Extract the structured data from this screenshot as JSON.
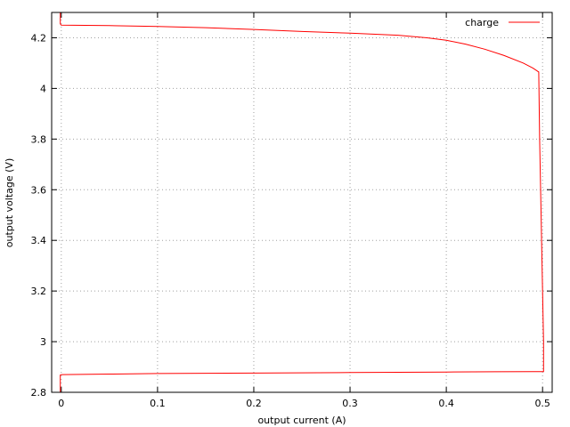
{
  "chart_data": {
    "type": "line",
    "title": "",
    "xlabel": "output current (A)",
    "ylabel": "output voltage (V)",
    "xlim": [
      -0.01,
      0.51
    ],
    "ylim": [
      2.8,
      4.3
    ],
    "x_ticks": [
      0,
      0.1,
      0.2,
      0.3,
      0.4,
      0.5
    ],
    "x_tick_labels": [
      "0",
      "0.1",
      "0.2",
      "0.3",
      "0.4",
      "0.5"
    ],
    "y_ticks": [
      2.8,
      3.0,
      3.2,
      3.4,
      3.6,
      3.8,
      4.0,
      4.2
    ],
    "y_tick_labels": [
      "2.8",
      "3",
      "3.2",
      "3.4",
      "3.6",
      "3.8",
      "4",
      "4.2"
    ],
    "grid": true,
    "legend_position": "top-right",
    "series": [
      {
        "name": "charge",
        "color": "#ff0000",
        "x": [
          -0.001,
          -0.001,
          0.0,
          0.05,
          0.1,
          0.15,
          0.2,
          0.25,
          0.3,
          0.35,
          0.38,
          0.4,
          0.42,
          0.44,
          0.46,
          0.48,
          0.49,
          0.496,
          0.497,
          0.498,
          0.499,
          0.5,
          0.501,
          0.501,
          0.49,
          0.45,
          0.4,
          0.3,
          0.2,
          0.1,
          0.05,
          0.0,
          -0.001,
          -0.001
        ],
        "y": [
          4.3,
          4.255,
          4.25,
          4.248,
          4.245,
          4.24,
          4.233,
          4.225,
          4.218,
          4.21,
          4.2,
          4.19,
          4.175,
          4.155,
          4.13,
          4.1,
          4.08,
          4.065,
          3.8,
          3.6,
          3.4,
          3.2,
          3.0,
          2.882,
          2.882,
          2.881,
          2.88,
          2.878,
          2.876,
          2.874,
          2.872,
          2.87,
          2.868,
          2.8
        ]
      }
    ]
  }
}
